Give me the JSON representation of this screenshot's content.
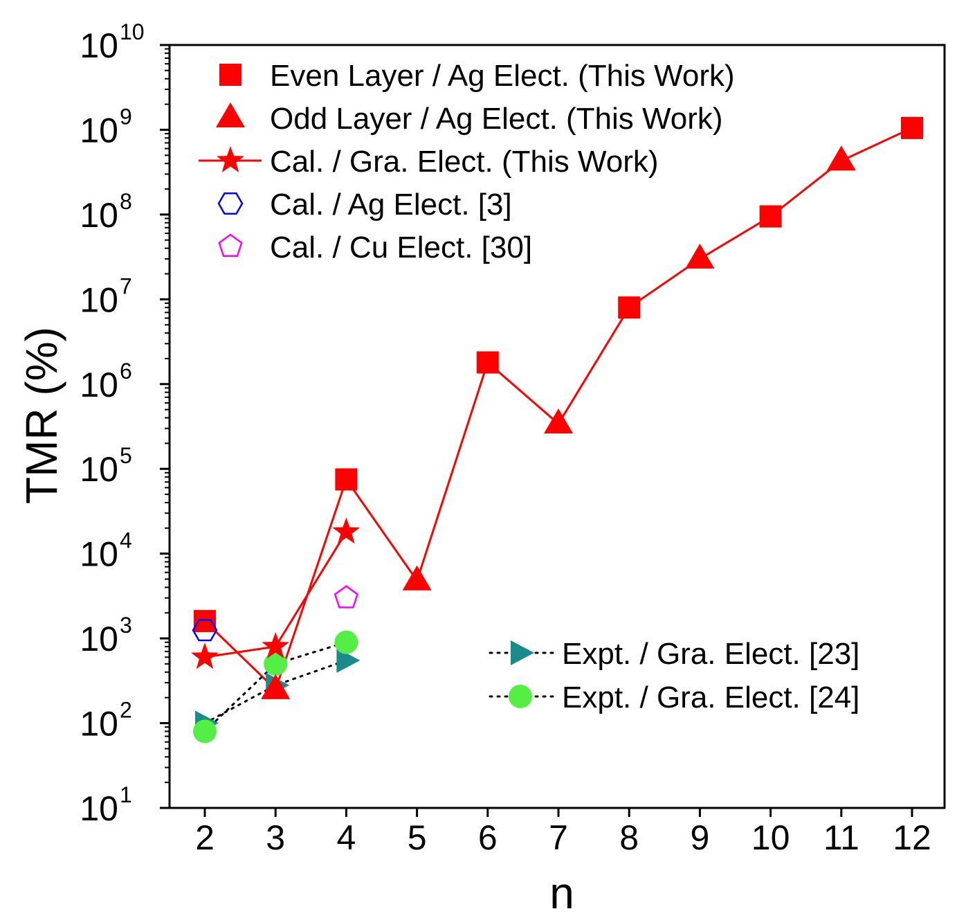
{
  "chart_data": {
    "type": "line",
    "title": "",
    "xlabel": "n",
    "ylabel": "TMR (%)",
    "x_ticks": [
      "2",
      "3",
      "4",
      "5",
      "6",
      "7",
      "8",
      "9",
      "10",
      "11",
      "12"
    ],
    "y_scale": "log",
    "y_ticks": [
      {
        "base": "10",
        "exp": "1",
        "value": 10
      },
      {
        "base": "10",
        "exp": "2",
        "value": 100
      },
      {
        "base": "10",
        "exp": "3",
        "value": 1000
      },
      {
        "base": "10",
        "exp": "4",
        "value": 10000
      },
      {
        "base": "10",
        "exp": "5",
        "value": 100000
      },
      {
        "base": "10",
        "exp": "6",
        "value": 1000000
      },
      {
        "base": "10",
        "exp": "7",
        "value": 10000000
      },
      {
        "base": "10",
        "exp": "8",
        "value": 100000000
      },
      {
        "base": "10",
        "exp": "9",
        "value": 1000000000
      },
      {
        "base": "10",
        "exp": "10",
        "value": 10000000000
      }
    ],
    "xlim": [
      1.5,
      12.5
    ],
    "ylim": [
      10,
      10000000000
    ],
    "grid": false,
    "series": [
      {
        "name": "Even Layer / Ag Elect. (This Work)",
        "marker": "square",
        "color": "#ff0000",
        "filled": true,
        "line": "none",
        "points": [
          {
            "x": 2,
            "y": 1600
          },
          {
            "x": 4,
            "y": 75000
          },
          {
            "x": 6,
            "y": 1800000
          },
          {
            "x": 8,
            "y": 8000000
          },
          {
            "x": 10,
            "y": 95000000
          },
          {
            "x": 12,
            "y": 1050000000
          }
        ]
      },
      {
        "name": "Odd Layer / Ag Elect. (This Work)",
        "marker": "triangle",
        "color": "#ff0000",
        "filled": true,
        "line": "none",
        "points": [
          {
            "x": 3,
            "y": 250
          },
          {
            "x": 5,
            "y": 4800
          },
          {
            "x": 7,
            "y": 340000
          },
          {
            "x": 9,
            "y": 30000000
          },
          {
            "x": 11,
            "y": 430000000
          }
        ]
      },
      {
        "name": "Cal. / Gra. Elect. (This Work)",
        "marker": "star",
        "color": "#ff0000",
        "filled": true,
        "line": "solid",
        "points": [
          {
            "x": 2,
            "y": 600
          },
          {
            "x": 3,
            "y": 800
          },
          {
            "x": 4,
            "y": 18000
          }
        ]
      },
      {
        "name": "Cal. / Ag Elect. [3]",
        "marker": "hexagon",
        "color": "#0000ff",
        "filled": false,
        "line": "none",
        "points": [
          {
            "x": 2,
            "y": 1250
          }
        ]
      },
      {
        "name": "Cal. / Cu Elect. [30]",
        "marker": "pentagon",
        "color": "#ff00ff",
        "filled": false,
        "line": "none",
        "points": [
          {
            "x": 4,
            "y": 3000
          }
        ]
      },
      {
        "name": "Expt. / Gra. Elect. [23]",
        "marker": "triangle-right",
        "color": "#1a8a8a",
        "filled": true,
        "line": "dotted",
        "points": [
          {
            "x": 2,
            "y": 100
          },
          {
            "x": 3,
            "y": 280
          },
          {
            "x": 4,
            "y": 550
          }
        ]
      },
      {
        "name": "Expt. / Gra. Elect. [24]",
        "marker": "circle",
        "color": "#55ee44",
        "filled": true,
        "line": "dotted",
        "points": [
          {
            "x": 2,
            "y": 80
          },
          {
            "x": 3,
            "y": 500
          },
          {
            "x": 4,
            "y": 900
          }
        ]
      }
    ],
    "connector_line": {
      "color": "#ff0000",
      "order": [
        2,
        3,
        4,
        5,
        6,
        7,
        8,
        9,
        10,
        11,
        12
      ]
    },
    "legend": {
      "placement": [
        "top-left",
        "bottom-right"
      ]
    }
  }
}
